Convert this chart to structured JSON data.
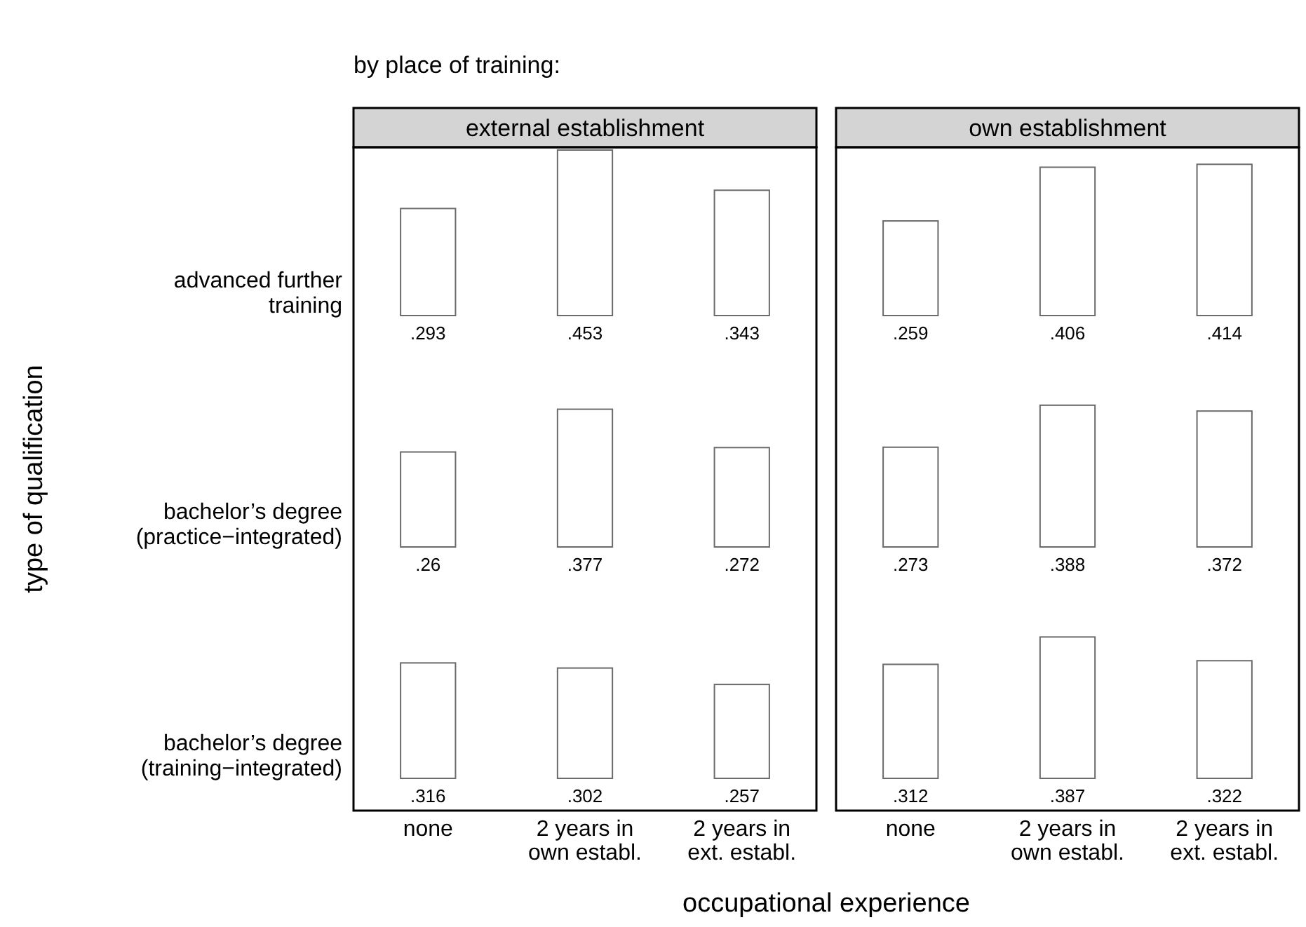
{
  "chart_data": [
    {
      "type": "bar",
      "title": "external establishment",
      "ylabel": "advanced further\ntraining",
      "categories": [
        null,
        null,
        null
      ],
      "values": [
        0.293,
        0.453,
        0.343
      ],
      "value_labels": [
        ".293",
        ".453",
        ".343"
      ],
      "color": "#ffffff",
      "annotations": [
        "by place of training:",
        "type of qualification",
        "occupational experience"
      ]
    },
    {
      "type": "bar",
      "title": "own establishment",
      "categories": [
        null,
        null,
        null
      ],
      "values": [
        0.259,
        0.406,
        0.414
      ],
      "value_labels": [
        ".259",
        ".406",
        ".414"
      ],
      "color": "#ffffff"
    },
    {
      "type": "bar",
      "ylabel": "bachelor’s degree\n(practice−integrated)",
      "categories": [
        null,
        null,
        null
      ],
      "values": [
        0.26,
        0.377,
        0.272
      ],
      "value_labels": [
        ".26",
        ".377",
        ".272"
      ],
      "color": "#ffffff"
    },
    {
      "type": "bar",
      "categories": [
        null,
        null,
        null
      ],
      "values": [
        0.273,
        0.388,
        0.372
      ],
      "value_labels": [
        ".273",
        ".388",
        ".372"
      ],
      "color": "#ffffff"
    },
    {
      "type": "bar",
      "ylabel": "bachelor’s degree\n(training−integrated)",
      "categories": [
        "none",
        "2 years in\nown establ.",
        "2 years in\next. establ."
      ],
      "values": [
        0.316,
        0.302,
        0.257
      ],
      "value_labels": [
        ".316",
        ".302",
        ".257"
      ],
      "color": "#ffffff"
    },
    {
      "type": "bar",
      "categories": [
        "none",
        "2 years in\nown establ.",
        "2 years in\next. establ."
      ],
      "values": [
        0.312,
        0.387,
        0.322
      ],
      "value_labels": [
        ".312",
        ".387",
        ".322"
      ],
      "color": "#ffffff"
    }
  ]
}
